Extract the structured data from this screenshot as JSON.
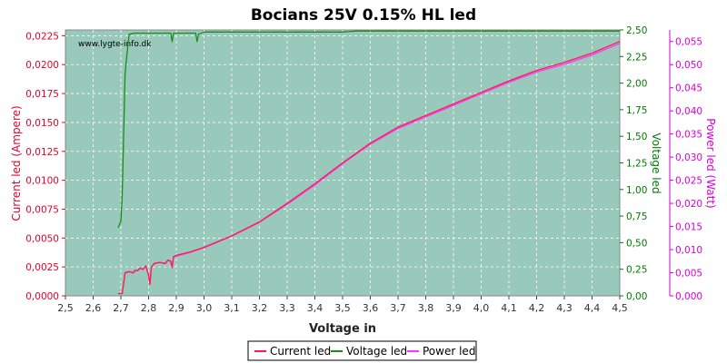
{
  "chart_data": {
    "type": "line",
    "title": "Bocians 25V 0.15% HL led",
    "watermark": "www.lygte-info.dk",
    "xlabel": "Voltage in",
    "xlim": [
      2.5,
      4.5
    ],
    "x_ticks": [
      "2,5",
      "2,6",
      "2,7",
      "2,8",
      "2,9",
      "3,0",
      "3,1",
      "3,2",
      "3,3",
      "3,4",
      "3,5",
      "3,6",
      "3,7",
      "3,8",
      "3,9",
      "4,0",
      "4,1",
      "4,2",
      "4,3",
      "4,4",
      "4,5"
    ],
    "grid": true,
    "legend_position": "bottom",
    "plot_background": "#99c9bb",
    "axes": [
      {
        "id": "current",
        "label": "Current led (Ampere)",
        "side": "left",
        "color": "#e8002a",
        "ylim": [
          0,
          0.023
        ],
        "ticks": [
          "0,0000",
          "0,0025",
          "0,0050",
          "0,0075",
          "0,0100",
          "0,0125",
          "0,0150",
          "0,0175",
          "0,0200",
          "0,0225"
        ]
      },
      {
        "id": "voltage",
        "label": "Voltage led",
        "side": "right",
        "color": "#007a00",
        "ylim": [
          0,
          2.5
        ],
        "ticks": [
          "0,00",
          "0,25",
          "0,50",
          "0,75",
          "1,00",
          "1,25",
          "1,50",
          "1,75",
          "2,00",
          "2,25",
          "2,50"
        ]
      },
      {
        "id": "power",
        "label": "Power led (Watt)",
        "side": "right-outer",
        "color": "#d600d6",
        "ylim": [
          0,
          0.0575
        ],
        "ticks": [
          "0,000",
          "0,005",
          "0,010",
          "0,015",
          "0,020",
          "0,025",
          "0,030",
          "0,035",
          "0,040",
          "0,045",
          "0,050",
          "0,055"
        ]
      }
    ],
    "series": [
      {
        "name": "Current led",
        "axis": "current",
        "color": "#ff1a4d",
        "x": [
          2.69,
          2.705,
          2.715,
          2.73,
          2.745,
          2.75,
          2.76,
          2.77,
          2.78,
          2.79,
          2.8,
          2.805,
          2.81,
          2.82,
          2.84,
          2.86,
          2.87,
          2.88,
          2.885,
          2.89,
          2.9,
          2.95,
          3.0,
          3.1,
          3.2,
          3.3,
          3.4,
          3.5,
          3.6,
          3.7,
          3.8,
          3.9,
          4.0,
          4.1,
          4.2,
          4.3,
          4.4,
          4.5
        ],
        "y": [
          0.0002,
          0.0002,
          0.002,
          0.0021,
          0.002,
          0.0022,
          0.0022,
          0.0024,
          0.0023,
          0.0026,
          0.0018,
          0.001,
          0.0025,
          0.0028,
          0.0029,
          0.0028,
          0.0031,
          0.003,
          0.0025,
          0.0034,
          0.0035,
          0.0038,
          0.0042,
          0.0052,
          0.0064,
          0.008,
          0.0097,
          0.0115,
          0.0132,
          0.0146,
          0.0156,
          0.0166,
          0.0176,
          0.0186,
          0.0195,
          0.0202,
          0.021,
          0.022
        ]
      },
      {
        "name": "Voltage led",
        "axis": "voltage",
        "color": "#1a8c1a",
        "x": [
          2.69,
          2.7,
          2.705,
          2.71,
          2.715,
          2.72,
          2.73,
          2.75,
          2.8,
          2.85,
          2.88,
          2.885,
          2.89,
          2.9,
          2.95,
          2.97,
          2.975,
          2.98,
          3.0,
          3.5,
          3.55,
          4.5
        ],
        "y": [
          0.64,
          0.7,
          0.95,
          1.5,
          2.08,
          2.22,
          2.46,
          2.47,
          2.47,
          2.47,
          2.47,
          2.39,
          2.47,
          2.47,
          2.47,
          2.47,
          2.39,
          2.46,
          2.48,
          2.48,
          2.49,
          2.49
        ]
      },
      {
        "name": "Power led",
        "axis": "power",
        "color": "#ff33ff",
        "x": [
          2.69,
          2.705,
          2.715,
          2.73,
          2.745,
          2.75,
          2.76,
          2.77,
          2.78,
          2.79,
          2.8,
          2.805,
          2.81,
          2.82,
          2.84,
          2.86,
          2.87,
          2.88,
          2.885,
          2.89,
          2.9,
          2.95,
          3.0,
          3.1,
          3.2,
          3.3,
          3.4,
          3.5,
          3.6,
          3.7,
          3.8,
          3.9,
          4.0,
          4.1,
          4.2,
          4.3,
          4.4,
          4.5
        ],
        "y": [
          0.0005,
          0.0005,
          0.0049,
          0.0052,
          0.0049,
          0.0054,
          0.0054,
          0.0059,
          0.0057,
          0.0064,
          0.0044,
          0.0025,
          0.0062,
          0.0069,
          0.0072,
          0.0069,
          0.0077,
          0.0074,
          0.006,
          0.0084,
          0.0086,
          0.0094,
          0.0104,
          0.0129,
          0.0159,
          0.0198,
          0.024,
          0.0286,
          0.0328,
          0.0362,
          0.0387,
          0.0412,
          0.0437,
          0.0462,
          0.0484,
          0.0501,
          0.0521,
          0.0546
        ]
      }
    ]
  }
}
